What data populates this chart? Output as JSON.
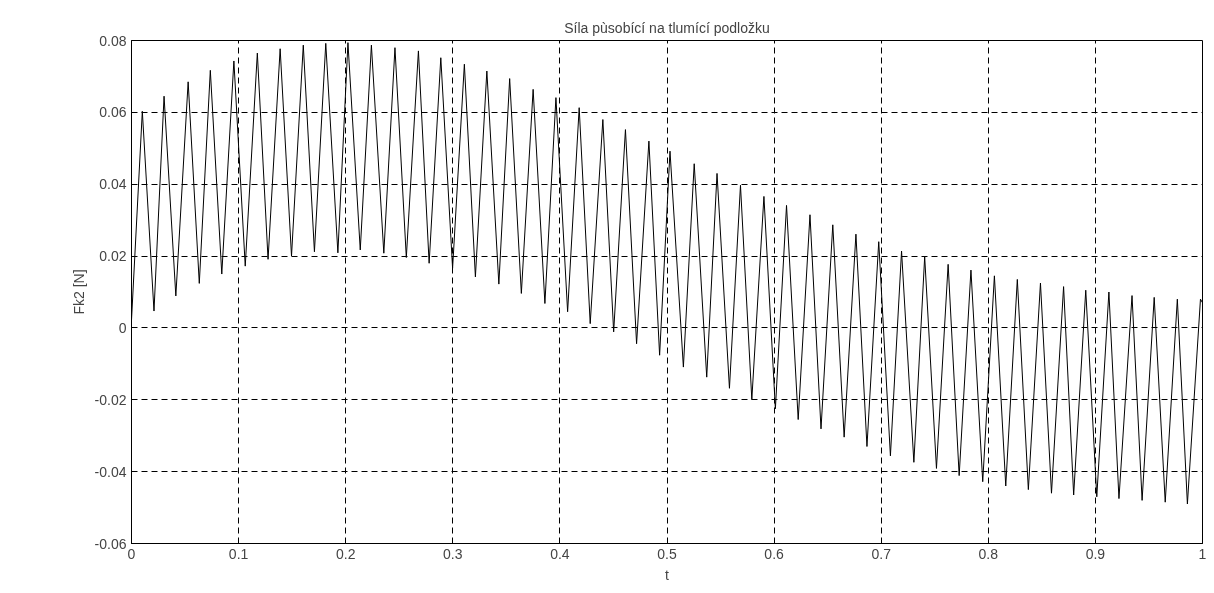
{
  "chart_data": {
    "type": "line",
    "title": "Síla pùsobící na tlumící podložku",
    "xlabel": "t",
    "ylabel": "Fk2 [N]",
    "xlim": [
      0,
      1
    ],
    "xticks": [
      0,
      0.1,
      0.2,
      0.3,
      0.4,
      0.5,
      0.6,
      0.7,
      0.8,
      0.9,
      1
    ],
    "ylim": [
      -0.06,
      0.08
    ],
    "yticks": [
      -0.06,
      -0.04,
      -0.02,
      0,
      0.02,
      0.04,
      0.06,
      0.08
    ],
    "grid": true,
    "marker": "none",
    "line_style": "solid",
    "series": [
      {
        "color": "#000000",
        "x": [
          0,
          0.0101,
          0.021,
          0.0304,
          0.0414,
          0.0529,
          0.0633,
          0.0736,
          0.0843,
          0.0956,
          0.1062,
          0.1175,
          0.1275,
          0.1388,
          0.1494,
          0.1604,
          0.1708,
          0.1814,
          0.1927,
          0.2021,
          0.2136,
          0.224,
          0.2356,
          0.246,
          0.2566,
          0.2679,
          0.2779,
          0.2888,
          0.2998,
          0.3108,
          0.3211,
          0.3318,
          0.343,
          0.3531,
          0.364,
          0.375,
          0.386,
          0.3963,
          0.4072,
          0.418,
          0.4283,
          0.4401,
          0.4502,
          0.4612,
          0.4716,
          0.4831,
          0.4931,
          0.5028,
          0.5153,
          0.5254,
          0.5371,
          0.5467,
          0.5583,
          0.5686,
          0.5792,
          0.5905,
          0.6012,
          0.6116,
          0.6225,
          0.6335,
          0.6438,
          0.6548,
          0.6654,
          0.6764,
          0.6867,
          0.6977,
          0.7086,
          0.719,
          0.7305,
          0.7406,
          0.7516,
          0.7625,
          0.7728,
          0.7838,
          0.7948,
          0.8057,
          0.8163,
          0.8271,
          0.8374,
          0.8487,
          0.859,
          0.8703,
          0.8797,
          0.891,
          0.9013,
          0.9126,
          0.922,
          0.9342,
          0.9436,
          0.9549,
          0.9652,
          0.9765,
          0.9859,
          0.9981,
          1
        ],
        "values": [
          0.0022,
          0.0603,
          0.0047,
          0.0645,
          0.0089,
          0.0685,
          0.0124,
          0.0717,
          0.015,
          0.0743,
          0.0172,
          0.0765,
          0.0191,
          0.0777,
          0.02,
          0.0787,
          0.0212,
          0.0792,
          0.0209,
          0.0794,
          0.0217,
          0.0787,
          0.0208,
          0.078,
          0.0196,
          0.0771,
          0.018,
          0.0752,
          0.0166,
          0.0734,
          0.0142,
          0.0715,
          0.0122,
          0.0694,
          0.0096,
          0.0664,
          0.0068,
          0.0641,
          0.0045,
          0.0613,
          0.0012,
          0.058,
          -0.0011,
          0.0552,
          -0.0044,
          0.052,
          -0.0076,
          0.0492,
          -0.0109,
          0.0457,
          -0.0137,
          0.043,
          -0.0168,
          0.0397,
          -0.0199,
          0.0366,
          -0.0225,
          0.0341,
          -0.0255,
          0.0315,
          -0.0281,
          0.0287,
          -0.0304,
          0.0261,
          -0.033,
          0.024,
          -0.0356,
          0.0214,
          -0.0374,
          0.0198,
          -0.0391,
          0.0177,
          -0.0411,
          0.0161,
          -0.0428,
          0.0145,
          -0.044,
          0.0135,
          -0.045,
          0.0125,
          -0.046,
          0.0115,
          -0.0465,
          0.0105,
          -0.047,
          0.01,
          -0.0475,
          0.009,
          -0.048,
          0.0085,
          -0.0485,
          0.008,
          -0.049,
          0.008,
          0.007
        ]
      }
    ]
  }
}
